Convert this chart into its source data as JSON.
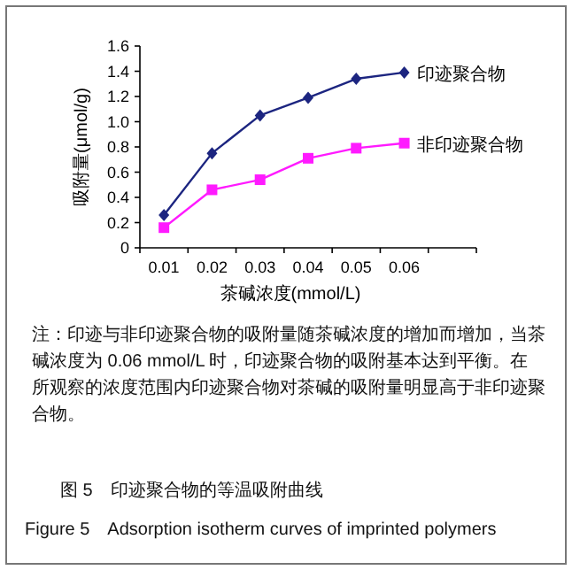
{
  "chart_data": {
    "type": "line",
    "xlabel": "茶碱浓度(mmol/L)",
    "ylabel": "吸附量(μmol/g)",
    "categories": [
      "0.01",
      "0.02",
      "0.03",
      "0.04",
      "0.05",
      "0.06",
      null
    ],
    "series": [
      {
        "name": "印迹聚合物",
        "color": "#1c2580",
        "marker": "diamond",
        "values": [
          0.26,
          0.75,
          1.05,
          1.19,
          1.34,
          1.39,
          null
        ]
      },
      {
        "name": "非印迹聚合物",
        "color": "#ff1aff",
        "marker": "square",
        "values": [
          0.16,
          0.46,
          0.54,
          0.71,
          0.79,
          0.83,
          null
        ]
      }
    ],
    "ylim": [
      0,
      1.6
    ],
    "yticks": [
      0,
      0.2,
      0.4,
      0.6,
      0.8,
      {
        "value": 1,
        "label": "1.0"
      },
      1.2,
      1.4,
      1.6
    ],
    "grid": false,
    "line_style": "solid",
    "annotations": [
      "注：印迹与非印迹聚合物的吸附量随茶碱浓度的增加而增加，当茶碱浓度为 0.06 mmol/L 时，印迹聚合物的吸附基本达到平衡。在所观察的浓度范围内印迹聚合物对茶碱的吸附量明显高于非印迹聚合物。",
      "图 5　印迹聚合物的等温吸附曲线",
      "Figure 5　Adsorption isotherm curves of imprinted polymers"
    ]
  }
}
